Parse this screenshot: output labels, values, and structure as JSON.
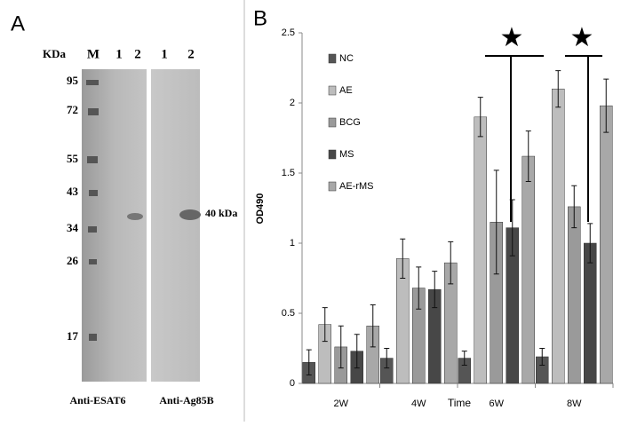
{
  "blot": {
    "panel_label": "A",
    "unit": "KDa",
    "lanes": [
      "M",
      "1",
      "2",
      "1",
      "2"
    ],
    "markers": [
      "95",
      "72",
      "55",
      "43",
      "34",
      "26",
      "17"
    ],
    "band_label": "40 kDa",
    "antibodies": [
      "Anti-ESAT6",
      "Anti-Ag85B"
    ]
  },
  "chart_data": {
    "type": "bar",
    "panel_label": "B",
    "y_label": "OD490",
    "x_label": "Time",
    "categories": [
      "2W",
      "4W",
      "6W",
      "8W"
    ],
    "series": [
      {
        "name": "NC",
        "color": "#555555",
        "values": [
          0.15,
          0.18,
          0.18,
          0.19
        ],
        "errors": [
          0.09,
          0.07,
          0.05,
          0.06
        ]
      },
      {
        "name": "AE",
        "color": "#bdbdbd",
        "values": [
          0.42,
          0.89,
          1.9,
          2.1
        ],
        "errors": [
          0.12,
          0.14,
          0.14,
          0.13
        ]
      },
      {
        "name": "BCG",
        "color": "#9a9a9a",
        "values": [
          0.26,
          0.68,
          1.15,
          1.26
        ],
        "errors": [
          0.15,
          0.15,
          0.37,
          0.15
        ]
      },
      {
        "name": "MS",
        "color": "#474747",
        "values": [
          0.23,
          0.67,
          1.11,
          1.0
        ],
        "errors": [
          0.12,
          0.13,
          0.2,
          0.14
        ]
      },
      {
        "name": "AE-rMS",
        "color": "#a8a8a8",
        "values": [
          0.41,
          0.86,
          1.62,
          1.98
        ],
        "errors": [
          0.15,
          0.15,
          0.18,
          0.19
        ]
      }
    ],
    "ylim": [
      0,
      2.5
    ],
    "yticks": [
      0,
      0.5,
      1,
      1.5,
      2,
      2.5
    ]
  }
}
